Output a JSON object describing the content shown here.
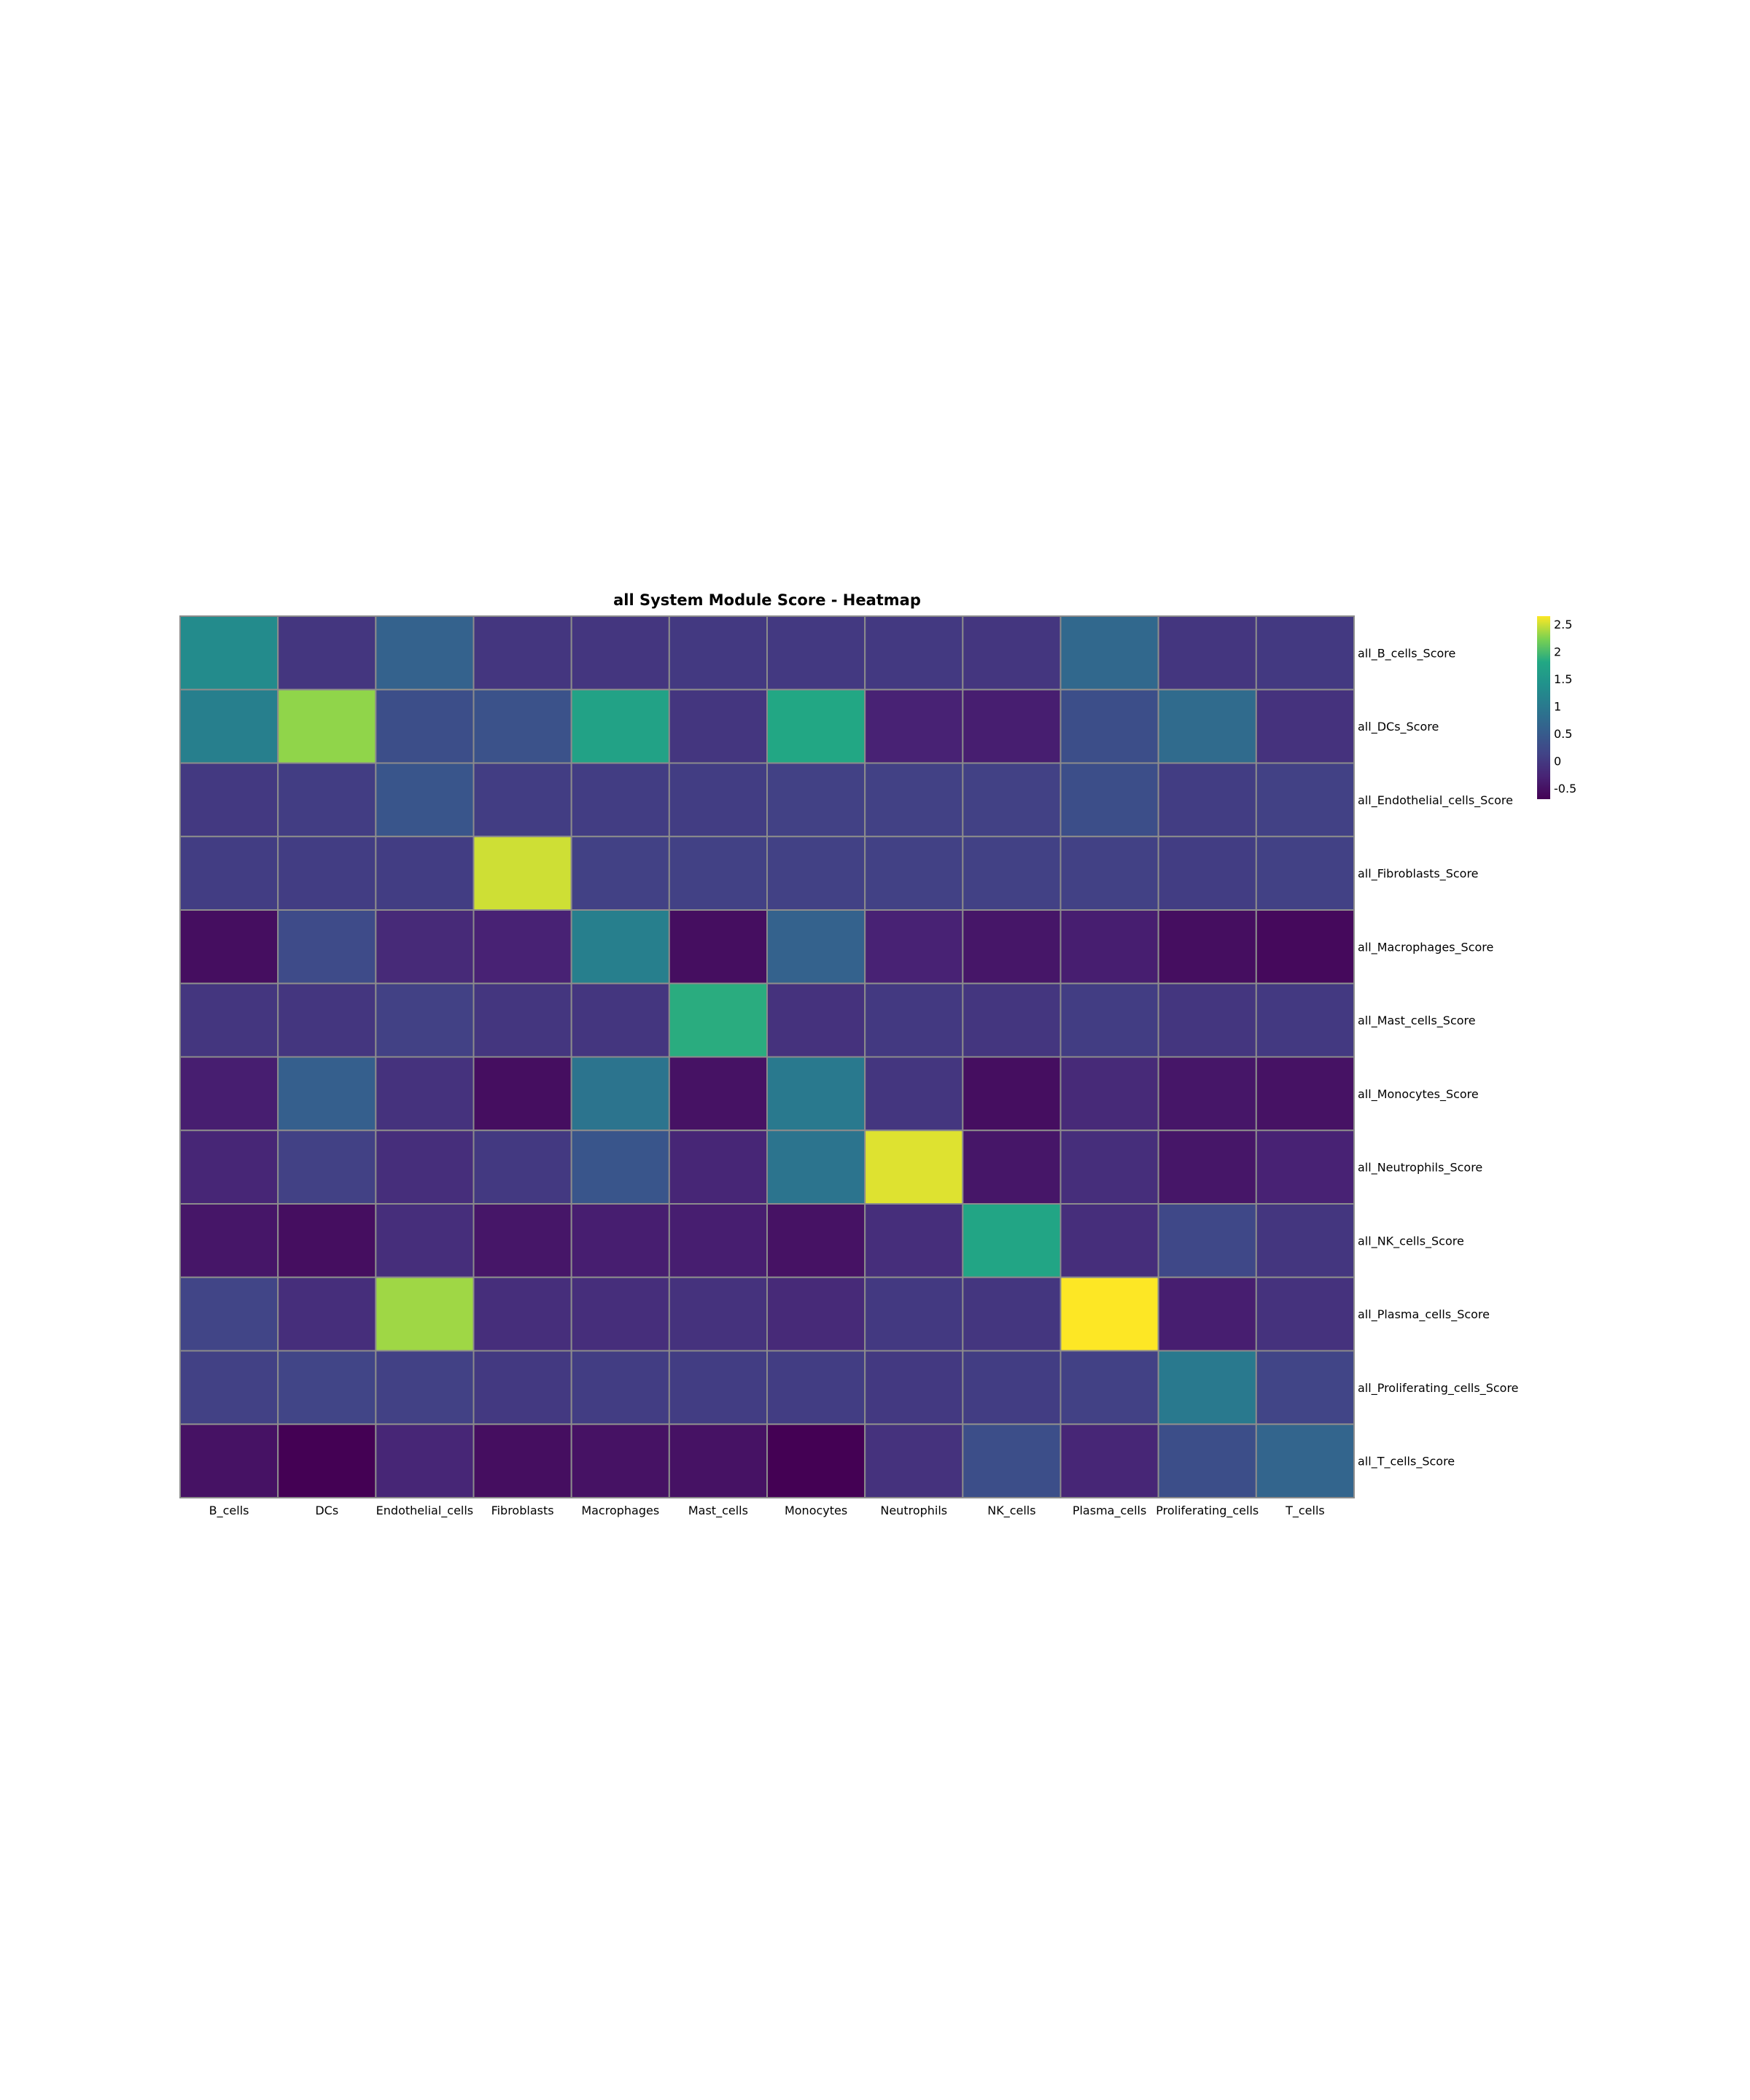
{
  "chart_data": {
    "type": "heatmap",
    "title": "all System Module Score - Heatmap",
    "xlabel": "",
    "ylabel": "",
    "x": [
      "B_cells",
      "DCs",
      "Endothelial_cells",
      "Fibroblasts",
      "Macrophages",
      "Mast_cells",
      "Monocytes",
      "Neutrophils",
      "NK_cells",
      "Plasma_cells",
      "Proliferating_cells",
      "T_cells"
    ],
    "y": [
      "all_B_cells_Score",
      "all_DCs_Score",
      "all_Endothelial_cells_Score",
      "all_Fibroblasts_Score",
      "all_Macrophages_Score",
      "all_Mast_cells_Score",
      "all_Monocytes_Score",
      "all_Neutrophils_Score",
      "all_NK_cells_Score",
      "all_Plasma_cells_Score",
      "all_Proliferating_cells_Score",
      "all_T_cells_Score"
    ],
    "z": [
      [
        1.3,
        -0.05,
        0.6,
        -0.05,
        -0.05,
        0.0,
        0.0,
        0.0,
        -0.05,
        0.7,
        -0.05,
        0.0
      ],
      [
        1.1,
        2.3,
        0.3,
        0.35,
        1.7,
        -0.05,
        1.8,
        -0.3,
        -0.35,
        0.3,
        0.75,
        -0.1
      ],
      [
        0.0,
        0.05,
        0.4,
        0.05,
        0.05,
        0.05,
        0.1,
        0.1,
        0.1,
        0.3,
        0.05,
        0.1
      ],
      [
        0.05,
        0.05,
        0.05,
        2.5,
        0.1,
        0.1,
        0.1,
        0.1,
        0.1,
        0.1,
        0.05,
        0.1
      ],
      [
        -0.55,
        0.25,
        -0.2,
        -0.3,
        1.1,
        -0.55,
        0.6,
        -0.3,
        -0.45,
        -0.35,
        -0.55,
        -0.6
      ],
      [
        -0.05,
        -0.05,
        0.1,
        -0.05,
        -0.05,
        1.85,
        -0.1,
        0.0,
        -0.05,
        0.05,
        -0.05,
        0.0
      ],
      [
        -0.35,
        0.55,
        -0.1,
        -0.55,
        0.9,
        -0.5,
        1.0,
        -0.05,
        -0.55,
        -0.2,
        -0.45,
        -0.5
      ],
      [
        -0.25,
        0.1,
        -0.15,
        0.0,
        0.4,
        -0.25,
        0.9,
        2.55,
        -0.45,
        -0.15,
        -0.45,
        -0.3
      ],
      [
        -0.45,
        -0.55,
        -0.15,
        -0.45,
        -0.35,
        -0.35,
        -0.5,
        -0.15,
        1.75,
        -0.15,
        0.2,
        -0.05
      ],
      [
        0.15,
        -0.15,
        2.35,
        -0.15,
        -0.15,
        -0.1,
        -0.2,
        0.0,
        -0.05,
        2.65,
        -0.35,
        -0.1
      ],
      [
        0.1,
        0.15,
        0.1,
        0.0,
        0.05,
        0.05,
        0.05,
        0.0,
        0.05,
        0.1,
        1.0,
        0.15
      ],
      [
        -0.5,
        -0.7,
        -0.25,
        -0.55,
        -0.5,
        -0.5,
        -0.7,
        -0.1,
        0.3,
        -0.25,
        0.3,
        0.65
      ]
    ],
    "colorscale": "viridis",
    "zmin": -0.7,
    "zmax": 2.65,
    "colorbar": {
      "ticks": [
        2.5,
        2,
        1.5,
        1,
        0.5,
        0,
        -0.5
      ],
      "tick_labels": [
        "2.5",
        "2",
        "1.5",
        "1",
        "0.5",
        "0",
        "-0.5"
      ]
    },
    "cell_border_color": "#8c8c8c",
    "grid": false
  }
}
